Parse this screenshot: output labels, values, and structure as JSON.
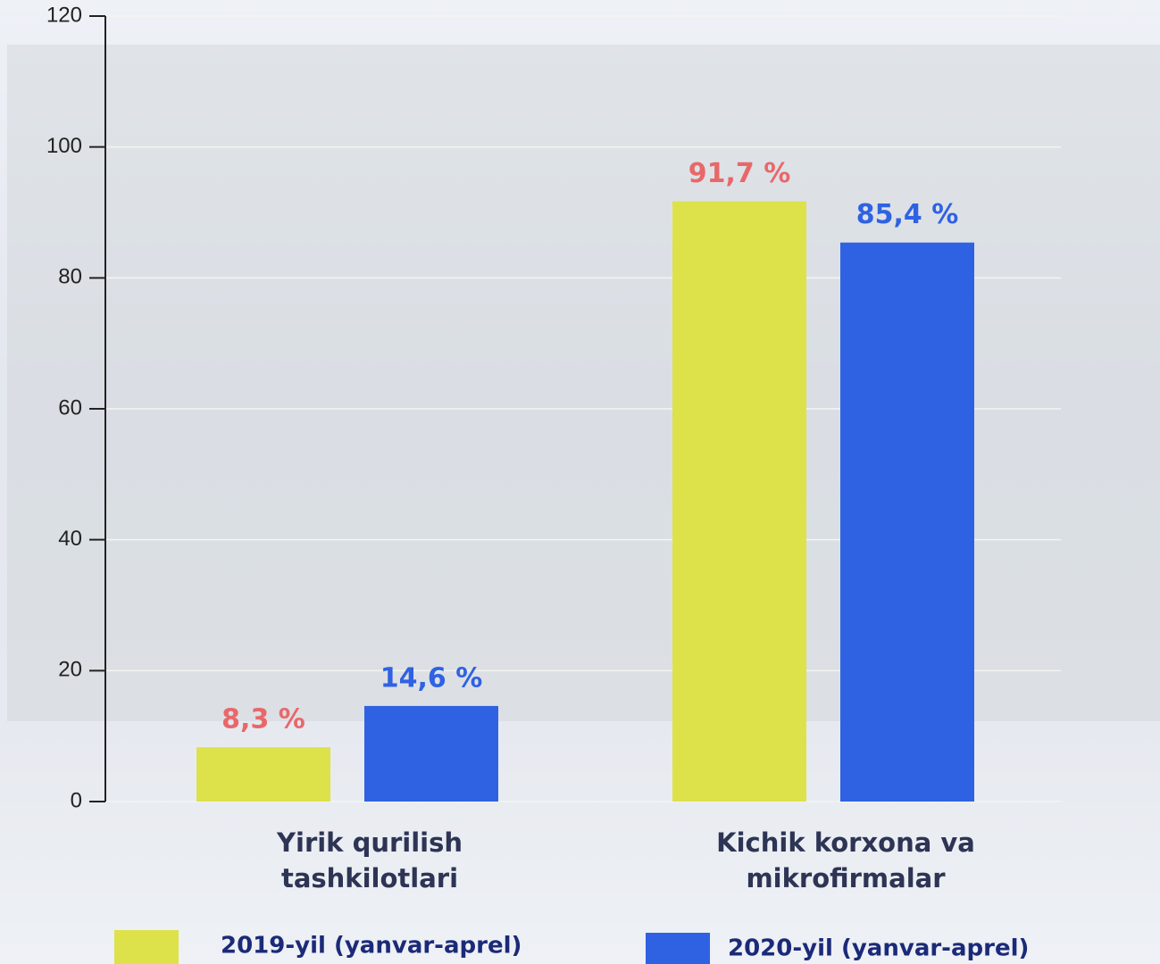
{
  "chart_data": {
    "type": "bar",
    "categories": [
      "Yirik qurilish tashkilotlari",
      "Kichik korxona va mikrofirmalar"
    ],
    "series": [
      {
        "name": "2019-yil (yanvar-aprel)",
        "color": "#dde24b",
        "label_color": "#e8686a",
        "values": [
          8.3,
          91.7
        ],
        "value_labels": [
          "8,3 %",
          "91,7 %"
        ]
      },
      {
        "name": "2020-yil (yanvar-aprel)",
        "color": "#2f62e3",
        "label_color": "#2f62e3",
        "values": [
          14.6,
          85.4
        ],
        "value_labels": [
          "14,6 %",
          "85,4 %"
        ]
      }
    ],
    "ylim": [
      0,
      120
    ],
    "yticks": [
      0,
      20,
      40,
      60,
      80,
      100,
      120
    ],
    "grid": true
  }
}
